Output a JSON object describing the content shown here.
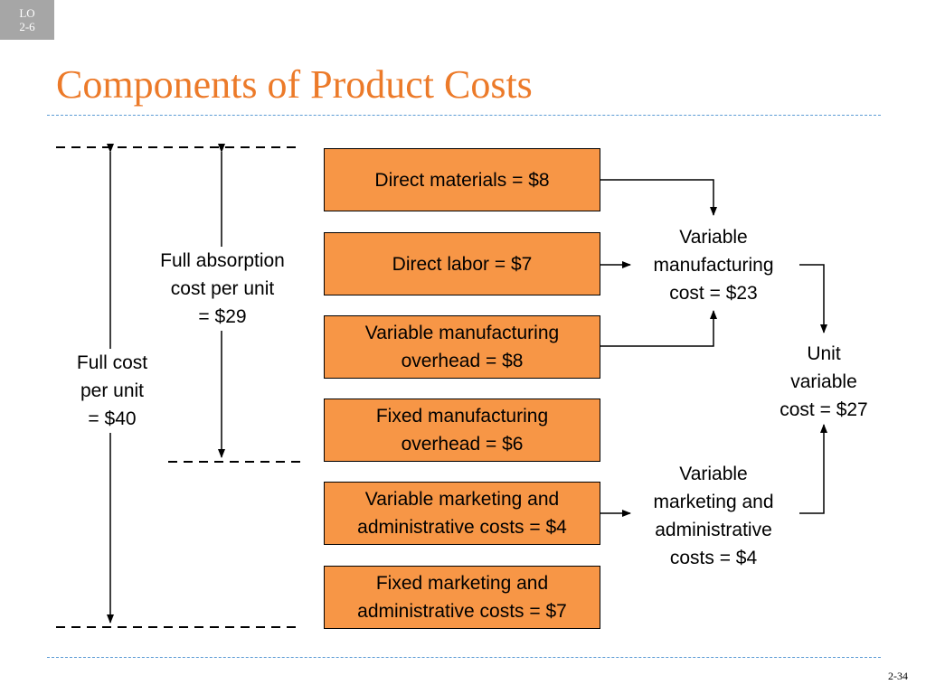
{
  "lo_badge": {
    "line1": "LO",
    "line2": "2-6"
  },
  "title": "Components of Product Costs",
  "boxes": {
    "direct_materials": "Direct materials = $8",
    "direct_labor": "Direct labor = $7",
    "variable_mfg_overhead": "Variable manufacturing\noverhead = $8",
    "fixed_mfg_overhead": "Fixed manufacturing\noverhead = $6",
    "variable_mkt_admin": "Variable marketing and\nadministrative costs = $4",
    "fixed_mkt_admin": "Fixed marketing and\nadministrative costs = $7"
  },
  "labels": {
    "full_absorption": "Full absorption\ncost per unit\n= $29",
    "full_cost": "Full cost\nper unit\n= $40",
    "variable_manufacturing": "Variable\nmanufacturing\ncost = $23",
    "unit_variable": "Unit\nvariable\ncost = $27",
    "variable_marketing": "Variable\nmarketing and\nadministrative\ncosts = $4"
  },
  "page_number": "2-34"
}
